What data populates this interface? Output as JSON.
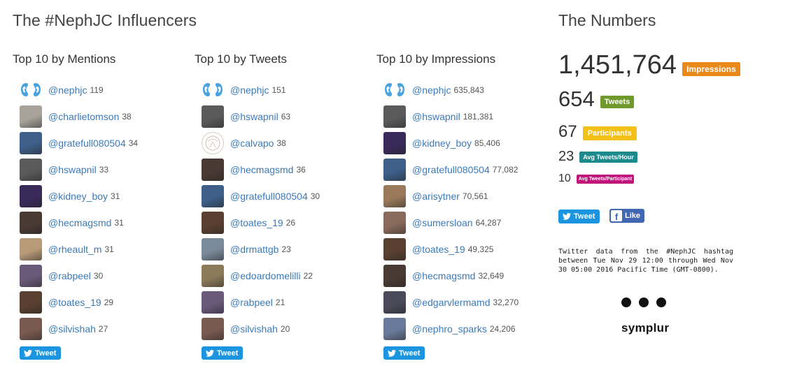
{
  "influencers_title": "The #NephJC Influencers",
  "numbers_title": "The Numbers",
  "tweet_label": "Tweet",
  "like_label": "Like",
  "columns": [
    {
      "title": "Top 10 by Mentions",
      "items": [
        {
          "handle": "@nephjc",
          "count": "119",
          "avatar": "logo"
        },
        {
          "handle": "@charlietomson",
          "count": "38",
          "avatar": "#a8a29a"
        },
        {
          "handle": "@gratefull080504",
          "count": "34",
          "avatar": "#3d5f88"
        },
        {
          "handle": "@hswapnil",
          "count": "33",
          "avatar": "#5a5a5a"
        },
        {
          "handle": "@kidney_boy",
          "count": "31",
          "avatar": "#3a2a5a"
        },
        {
          "handle": "@hecmagsmd",
          "count": "31",
          "avatar": "#4a3a34"
        },
        {
          "handle": "@rheault_m",
          "count": "31",
          "avatar": "#b89a78"
        },
        {
          "handle": "@rabpeel",
          "count": "30",
          "avatar": "#6a5a7a"
        },
        {
          "handle": "@toates_19",
          "count": "29",
          "avatar": "#5a4030"
        },
        {
          "handle": "@silvishah",
          "count": "27",
          "avatar": "#7a5a50"
        }
      ]
    },
    {
      "title": "Top 10 by Tweets",
      "items": [
        {
          "handle": "@nephjc",
          "count": "151",
          "avatar": "logo"
        },
        {
          "handle": "@hswapnil",
          "count": "63",
          "avatar": "#5a5a5a"
        },
        {
          "handle": "@calvapo",
          "count": "38",
          "avatar": "ring"
        },
        {
          "handle": "@hecmagsmd",
          "count": "36",
          "avatar": "#4a3a34"
        },
        {
          "handle": "@gratefull080504",
          "count": "30",
          "avatar": "#3d5f88"
        },
        {
          "handle": "@toates_19",
          "count": "26",
          "avatar": "#5a4030"
        },
        {
          "handle": "@drmattgb",
          "count": "23",
          "avatar": "#7a8a9a"
        },
        {
          "handle": "@edoardomelilli",
          "count": "22",
          "avatar": "#8a7a5a"
        },
        {
          "handle": "@rabpeel",
          "count": "21",
          "avatar": "#6a5a7a"
        },
        {
          "handle": "@silvishah",
          "count": "20",
          "avatar": "#7a5a50"
        }
      ]
    },
    {
      "title": "Top 10 by Impressions",
      "items": [
        {
          "handle": "@nephjc",
          "count": "635,843",
          "avatar": "logo"
        },
        {
          "handle": "@hswapnil",
          "count": "181,381",
          "avatar": "#5a5a5a"
        },
        {
          "handle": "@kidney_boy",
          "count": "85,406",
          "avatar": "#3a2a5a"
        },
        {
          "handle": "@gratefull080504",
          "count": "77,082",
          "avatar": "#3d5f88"
        },
        {
          "handle": "@arisytner",
          "count": "70,561",
          "avatar": "#9a7a5a"
        },
        {
          "handle": "@sumersloan",
          "count": "64,287",
          "avatar": "#8a6a5a"
        },
        {
          "handle": "@toates_19",
          "count": "49,325",
          "avatar": "#5a4030"
        },
        {
          "handle": "@hecmagsmd",
          "count": "32,649",
          "avatar": "#4a3a34"
        },
        {
          "handle": "@edgarvlermamd",
          "count": "32,270",
          "avatar": "#4a4a5a"
        },
        {
          "handle": "@nephro_sparks",
          "count": "24,206",
          "avatar": "#6a7a9a"
        }
      ]
    }
  ],
  "stats": [
    {
      "value": "1,451,764",
      "label": "Impressions",
      "color": "#e8891a"
    },
    {
      "value": "654",
      "label": "Tweets",
      "color": "#6f9a2b"
    },
    {
      "value": "67",
      "label": "Participants",
      "color": "#f3c018"
    },
    {
      "value": "23",
      "label": "Avg Tweets/Hour",
      "color": "#1c8a8c"
    },
    {
      "value": "10",
      "label": "Avg Tweets/Participant",
      "color": "#c0157a"
    }
  ],
  "description": "Twitter data from the #NephJC hashtag between Tue Nov 29 12:00 through Wed Nov 30 05:00 2016 Pacific Time (GMT-0800).",
  "brand": "symplur"
}
